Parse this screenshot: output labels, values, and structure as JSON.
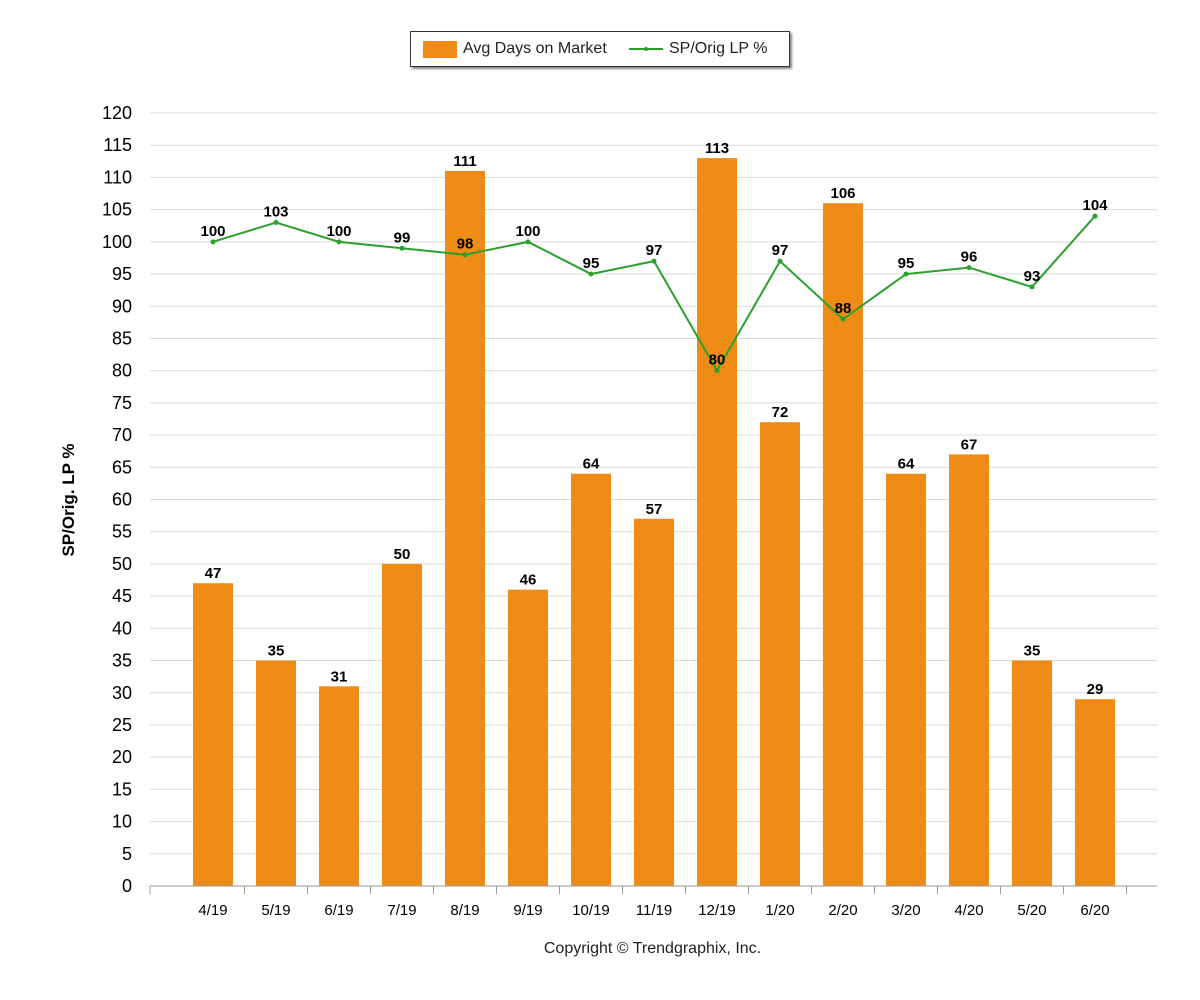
{
  "chart_data": {
    "type": "bar",
    "categories": [
      "4/19",
      "5/19",
      "6/19",
      "7/19",
      "8/19",
      "9/19",
      "10/19",
      "11/19",
      "12/19",
      "1/20",
      "2/20",
      "3/20",
      "4/20",
      "5/20",
      "6/20"
    ],
    "series": [
      {
        "name": "Avg Days on Market",
        "type": "bar",
        "color": "#EF8C16",
        "values": [
          47,
          35,
          31,
          50,
          111,
          46,
          64,
          57,
          113,
          72,
          106,
          64,
          67,
          35,
          29
        ]
      },
      {
        "name": "SP/Orig LP %",
        "type": "line",
        "color": "#2CA02C",
        "values": [
          100,
          103,
          100,
          99,
          98,
          100,
          95,
          97,
          80,
          97,
          88,
          95,
          96,
          93,
          104
        ]
      }
    ],
    "ylabel": "SP/Orig. LP %",
    "ylim": [
      0,
      120
    ],
    "yticks": [
      0,
      5,
      10,
      15,
      20,
      25,
      30,
      35,
      40,
      45,
      50,
      55,
      60,
      65,
      70,
      75,
      80,
      85,
      90,
      95,
      100,
      105,
      110,
      115,
      120
    ],
    "grid": true,
    "legend_position": "top"
  },
  "footer": {
    "copyright": "Copyright © Trendgraphix, Inc."
  }
}
